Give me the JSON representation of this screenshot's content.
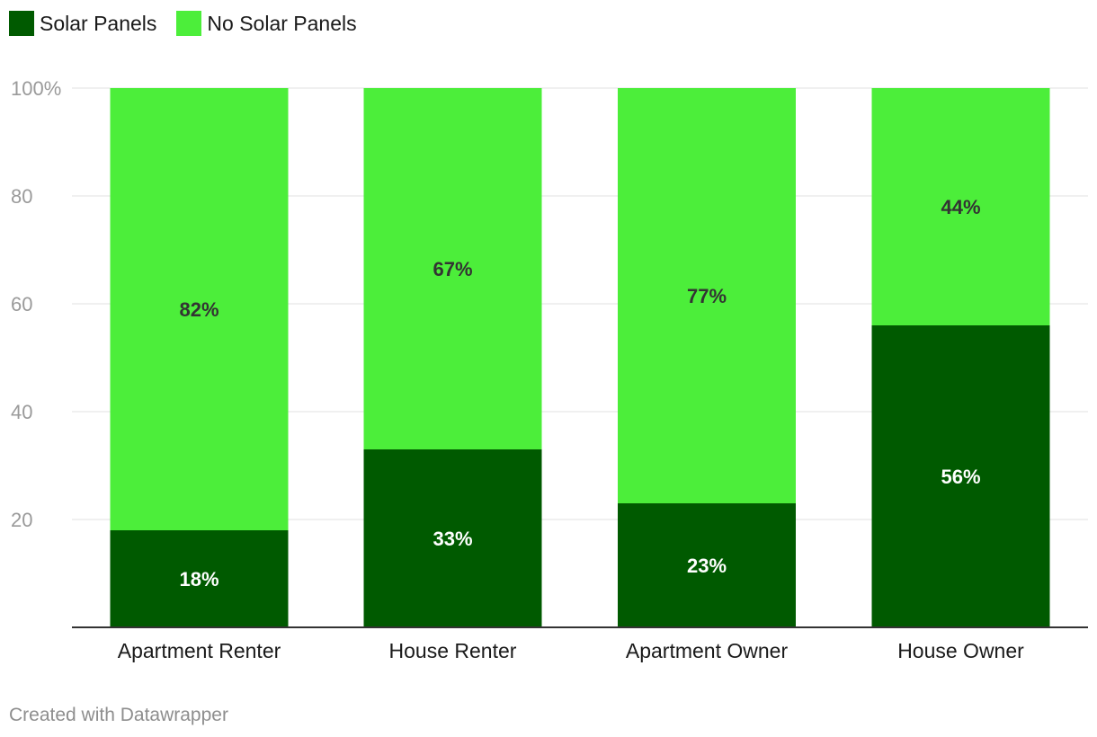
{
  "legend": {
    "items": [
      {
        "label": "Solar Panels",
        "color": "#005a00"
      },
      {
        "label": "No Solar Panels",
        "color": "#4cee3a"
      }
    ]
  },
  "chart_data": {
    "type": "bar",
    "stacked": true,
    "categories": [
      "Apartment Renter",
      "House Renter",
      "Apartment Owner",
      "House Owner"
    ],
    "series": [
      {
        "name": "Solar Panels",
        "values": [
          18,
          33,
          23,
          56
        ],
        "labels": [
          "18%",
          "33%",
          "23%",
          "56%"
        ],
        "color": "#005a00",
        "label_color": "#ffffff"
      },
      {
        "name": "No Solar Panels",
        "values": [
          82,
          67,
          77,
          44
        ],
        "labels": [
          "82%",
          "67%",
          "77%",
          "44%"
        ],
        "color": "#4cee3a",
        "label_color": "#333333"
      }
    ],
    "yticks": [
      20,
      40,
      60,
      80,
      100
    ],
    "ytick_labels": [
      "20",
      "40",
      "60",
      "80",
      "100%"
    ],
    "ylim": [
      0,
      100
    ],
    "title": "",
    "xlabel": "",
    "ylabel": "",
    "grid": true
  },
  "footer": {
    "credit": "Created with Datawrapper"
  }
}
